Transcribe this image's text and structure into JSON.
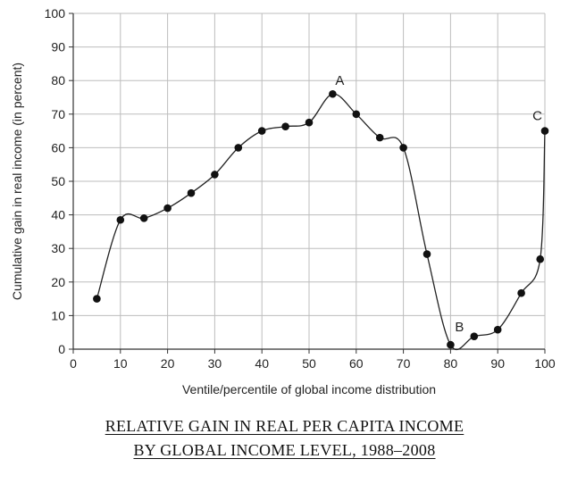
{
  "chart_data": {
    "type": "line",
    "xlabel": "Ventile/percentile of global income distribution",
    "ylabel": "Cumulative gain in real income (in percent)",
    "xlim": [
      0,
      100
    ],
    "ylim": [
      0,
      100
    ],
    "x_ticks": [
      0,
      10,
      20,
      30,
      40,
      50,
      60,
      70,
      80,
      90,
      100
    ],
    "y_ticks": [
      0,
      10,
      20,
      30,
      40,
      50,
      60,
      70,
      80,
      90,
      100
    ],
    "grid": true,
    "series": [
      {
        "x": [
          5,
          10,
          15,
          20,
          25,
          30,
          35,
          40,
          45,
          50,
          55,
          60,
          65,
          70,
          75,
          80,
          85,
          90,
          95,
          99,
          100
        ],
        "y": [
          15,
          38.5,
          39,
          42,
          46.5,
          52,
          60,
          65,
          66.3,
          67.5,
          76,
          70,
          63,
          60,
          28.3,
          1.3,
          3.8,
          5.8,
          16.7,
          26.8,
          65
        ]
      }
    ],
    "annotations": [
      {
        "text": "A",
        "x": 55,
        "y": 76
      },
      {
        "text": "B",
        "x": 80,
        "y": 1.3
      },
      {
        "text": "C",
        "x": 100,
        "y": 65
      }
    ]
  },
  "caption": {
    "line1": "RELATIVE GAIN IN REAL PER CAPITA INCOME",
    "line2": "BY GLOBAL INCOME LEVEL, 1988–2008"
  }
}
